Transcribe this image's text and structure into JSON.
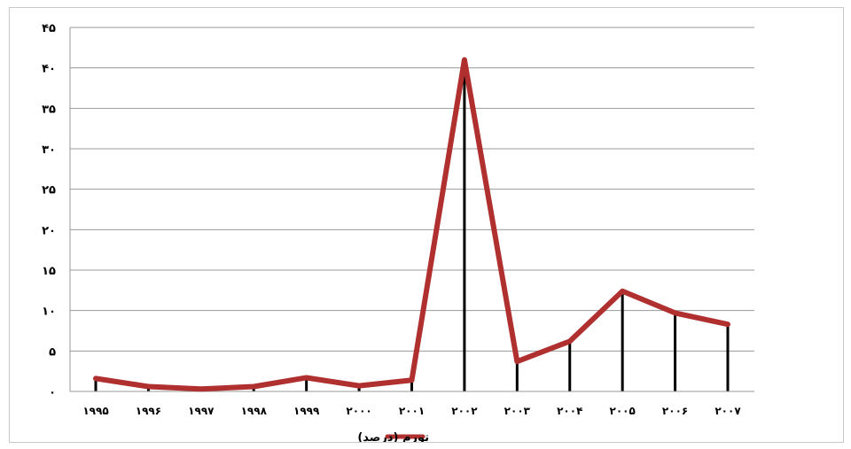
{
  "chart_data": {
    "type": "line",
    "title": "",
    "xlabel": "",
    "ylabel": "",
    "ylim": [
      0,
      45
    ],
    "y_ticks": [
      0,
      5,
      10,
      15,
      20,
      25,
      30,
      35,
      40,
      45
    ],
    "y_tick_labels": [
      "٠",
      "۵",
      "١٠",
      "١۵",
      "٢٠",
      "٢۵",
      "٣٠",
      "٣۵",
      "۴٠",
      "۴۵"
    ],
    "categories": [
      "١٩٩۵",
      "١٩٩۶",
      "١٩٩٧",
      "١٩٩٨",
      "١٩٩٩",
      "٢٠٠٠",
      "٢٠٠١",
      "٢٠٠٢",
      "٢٠٠٣",
      "٢٠٠۴",
      "٢٠٠۵",
      "٢٠٠۶",
      "٢٠٠٧"
    ],
    "series": [
      {
        "name": "تورم (درصد)",
        "color": "#b03030",
        "values": [
          1.6,
          0.6,
          0.3,
          0.6,
          1.7,
          0.7,
          1.4,
          41.0,
          3.7,
          6.2,
          12.4,
          9.7,
          8.3
        ]
      }
    ],
    "drop_lines": true,
    "grid": "horizontal",
    "legend_position": "bottom"
  }
}
